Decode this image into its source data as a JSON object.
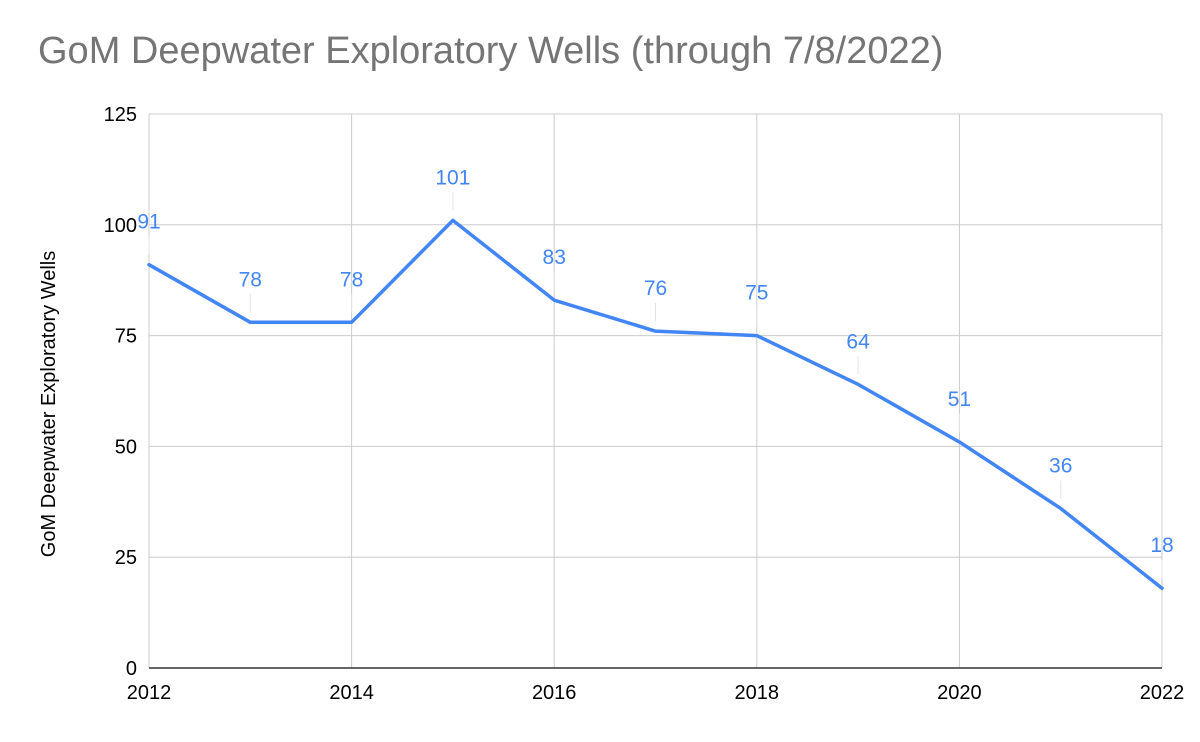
{
  "chart_data": {
    "type": "line",
    "title": "GoM Deepwater Exploratory Wells (through 7/8/2022)",
    "xlabel": "",
    "ylabel": "GoM Deepwater Exploratory Wells",
    "x": [
      2012,
      2013,
      2014,
      2015,
      2016,
      2017,
      2018,
      2019,
      2020,
      2021,
      2022
    ],
    "series": [
      {
        "values": [
          91,
          78,
          78,
          101,
          83,
          76,
          75,
          64,
          51,
          36,
          18
        ]
      }
    ],
    "xlim": [
      2012,
      2022
    ],
    "ylim": [
      0,
      125
    ],
    "x_ticks": [
      "2012",
      "2014",
      "2016",
      "2018",
      "2020",
      "2022"
    ],
    "y_ticks": [
      "0",
      "25",
      "50",
      "75",
      "100",
      "125"
    ],
    "data_labels": true,
    "grid": true,
    "legend": "none",
    "colors": {
      "line": "#4285F4",
      "label": "#4285F4",
      "grid": "#cccccc",
      "axis": "#333333",
      "title": "#757575"
    }
  }
}
